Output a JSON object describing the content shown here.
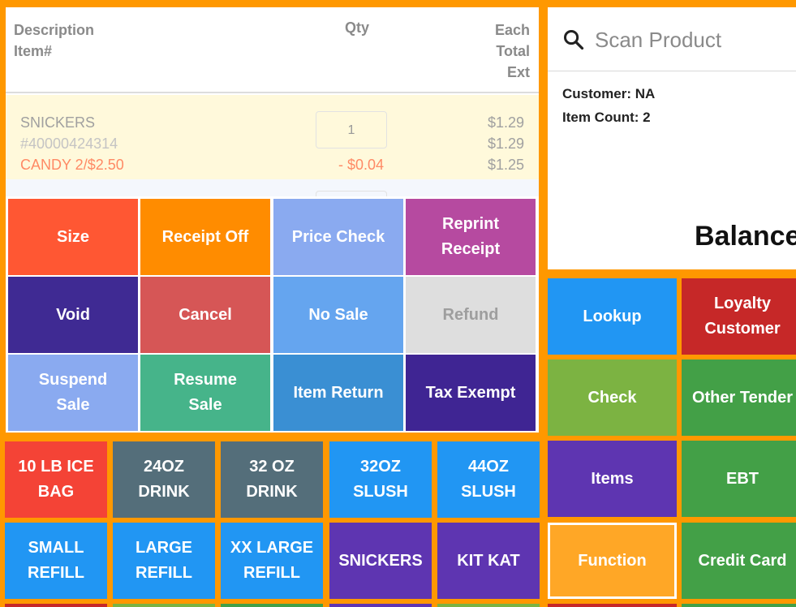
{
  "receipt": {
    "headers": {
      "description": "Description",
      "item_no": "Item#",
      "qty": "Qty",
      "each": "Each",
      "total": "Total",
      "ext": "Ext"
    },
    "line": {
      "name": "SNICKERS",
      "item_no": "#40000424314",
      "promo": "CANDY 2/$2.50",
      "qty": "1",
      "discount": "- $0.04",
      "each": "$1.29",
      "total": "$1.29",
      "ext": "$1.25"
    }
  },
  "search": {
    "placeholder": "Scan Product"
  },
  "info": {
    "customer": "Customer: NA",
    "item_count": "Item Count: 2",
    "balance": "Balance"
  },
  "function_menu": [
    {
      "label": "Size",
      "color": "#ff5733"
    },
    {
      "label": "Receipt Off",
      "color": "#ff8c00"
    },
    {
      "label": "Price Check",
      "color": "#8aaaf0"
    },
    {
      "label": "Reprint\nReceipt",
      "color": "#b64aa0"
    },
    {
      "label": "Void",
      "color": "#3f2a93"
    },
    {
      "label": "Cancel",
      "color": "#d65656"
    },
    {
      "label": "No Sale",
      "color": "#65a5ef"
    },
    {
      "label": "Refund",
      "color": "#dedede",
      "text_color": "#9e9e9e",
      "disabled": true
    },
    {
      "label": "Suspend\nSale",
      "color": "#8aaaf0"
    },
    {
      "label": "Resume\nSale",
      "color": "#46b48a"
    },
    {
      "label": "Item Return",
      "color": "#3a8fd3"
    },
    {
      "label": "Tax Exempt",
      "color": "#3f2593"
    }
  ],
  "products": [
    {
      "label": "10 LB ICE\nBAG",
      "color": "#f44336"
    },
    {
      "label": "24OZ\nDRINK",
      "color": "#546e7a"
    },
    {
      "label": "32 OZ\nDRINK",
      "color": "#546e7a"
    },
    {
      "label": "32OZ\nSLUSH",
      "color": "#2196f3"
    },
    {
      "label": "44OZ\nSLUSH",
      "color": "#2196f3"
    },
    {
      "label": "SMALL\nREFILL",
      "color": "#2196f3"
    },
    {
      "label": "LARGE\nREFILL",
      "color": "#2196f3"
    },
    {
      "label": "XX LARGE\nREFILL",
      "color": "#2196f3"
    },
    {
      "label": "SNICKERS",
      "color": "#5e35b1"
    },
    {
      "label": "KIT KAT",
      "color": "#5e35b1"
    }
  ],
  "product_peek_colors": [
    "#c62828",
    "#7cb342",
    "#43a047",
    "#5e35b1",
    "#7cb342"
  ],
  "actions": [
    {
      "label": "Lookup",
      "color": "#2196f3"
    },
    {
      "label": "Loyalty\nCustomer",
      "color": "#c62828"
    },
    {
      "label": "Check",
      "color": "#7cb342"
    },
    {
      "label": "Other Tender",
      "color": "#43a047"
    },
    {
      "label": "Items",
      "color": "#5e35b1"
    },
    {
      "label": "EBT",
      "color": "#43a047"
    },
    {
      "label": "Function",
      "color": "#ffa726",
      "selected": true
    },
    {
      "label": "Credit Card",
      "color": "#43a047"
    }
  ],
  "action_peek_colors": [
    "#c62828",
    "#43a047"
  ]
}
